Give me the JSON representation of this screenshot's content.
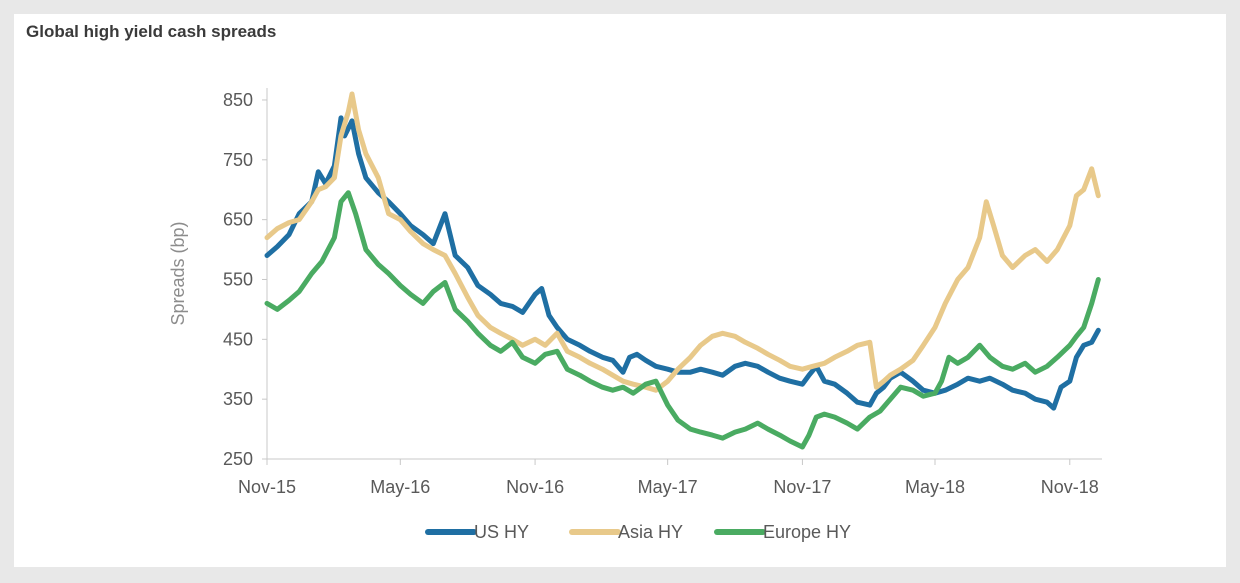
{
  "title": "Global high yield cash spreads",
  "chart_data": {
    "type": "line",
    "ylabel": "Spreads (bp)",
    "ylim": [
      250,
      870
    ],
    "xlim": [
      "2015-11-01",
      "2018-12-15"
    ],
    "yticks": [
      250,
      350,
      450,
      550,
      650,
      750,
      850
    ],
    "xticks": [
      {
        "label": "Nov-15",
        "date": "2015-11-01"
      },
      {
        "label": "May-16",
        "date": "2016-05-01"
      },
      {
        "label": "Nov-16",
        "date": "2016-11-01"
      },
      {
        "label": "May-17",
        "date": "2017-05-01"
      },
      {
        "label": "Nov-17",
        "date": "2017-11-01"
      },
      {
        "label": "May-18",
        "date": "2018-05-01"
      },
      {
        "label": "Nov-18",
        "date": "2018-11-01"
      }
    ],
    "grid": false,
    "legend": "bottom",
    "series": [
      {
        "name": "US HY",
        "color": "#1f6fa3",
        "points": [
          [
            "2015-11-01",
            590
          ],
          [
            "2015-11-15",
            605
          ],
          [
            "2015-12-01",
            625
          ],
          [
            "2015-12-15",
            660
          ],
          [
            "2016-01-01",
            680
          ],
          [
            "2016-01-10",
            730
          ],
          [
            "2016-01-20",
            710
          ],
          [
            "2016-02-01",
            740
          ],
          [
            "2016-02-10",
            820
          ],
          [
            "2016-02-15",
            790
          ],
          [
            "2016-02-25",
            815
          ],
          [
            "2016-03-05",
            760
          ],
          [
            "2016-03-15",
            720
          ],
          [
            "2016-04-01",
            695
          ],
          [
            "2016-04-15",
            680
          ],
          [
            "2016-05-01",
            660
          ],
          [
            "2016-05-15",
            640
          ],
          [
            "2016-06-01",
            625
          ],
          [
            "2016-06-15",
            610
          ],
          [
            "2016-07-01",
            660
          ],
          [
            "2016-07-15",
            590
          ],
          [
            "2016-08-01",
            570
          ],
          [
            "2016-08-15",
            540
          ],
          [
            "2016-09-01",
            525
          ],
          [
            "2016-09-15",
            510
          ],
          [
            "2016-10-01",
            505
          ],
          [
            "2016-10-15",
            495
          ],
          [
            "2016-11-01",
            525
          ],
          [
            "2016-11-10",
            535
          ],
          [
            "2016-11-20",
            490
          ],
          [
            "2016-12-01",
            470
          ],
          [
            "2016-12-15",
            450
          ],
          [
            "2017-01-01",
            440
          ],
          [
            "2017-01-15",
            430
          ],
          [
            "2017-02-01",
            420
          ],
          [
            "2017-02-15",
            415
          ],
          [
            "2017-03-01",
            395
          ],
          [
            "2017-03-10",
            420
          ],
          [
            "2017-03-20",
            425
          ],
          [
            "2017-04-01",
            415
          ],
          [
            "2017-04-15",
            405
          ],
          [
            "2017-05-01",
            400
          ],
          [
            "2017-05-15",
            395
          ],
          [
            "2017-06-01",
            395
          ],
          [
            "2017-06-15",
            400
          ],
          [
            "2017-07-01",
            395
          ],
          [
            "2017-07-15",
            390
          ],
          [
            "2017-08-01",
            405
          ],
          [
            "2017-08-15",
            410
          ],
          [
            "2017-09-01",
            405
          ],
          [
            "2017-09-15",
            395
          ],
          [
            "2017-10-01",
            385
          ],
          [
            "2017-10-15",
            380
          ],
          [
            "2017-11-01",
            375
          ],
          [
            "2017-11-10",
            390
          ],
          [
            "2017-11-20",
            405
          ],
          [
            "2017-12-01",
            380
          ],
          [
            "2017-12-15",
            375
          ],
          [
            "2018-01-01",
            360
          ],
          [
            "2018-01-15",
            345
          ],
          [
            "2018-02-01",
            340
          ],
          [
            "2018-02-10",
            360
          ],
          [
            "2018-02-20",
            370
          ],
          [
            "2018-03-01",
            385
          ],
          [
            "2018-03-15",
            395
          ],
          [
            "2018-04-01",
            380
          ],
          [
            "2018-04-15",
            365
          ],
          [
            "2018-05-01",
            360
          ],
          [
            "2018-05-15",
            365
          ],
          [
            "2018-06-01",
            375
          ],
          [
            "2018-06-15",
            385
          ],
          [
            "2018-07-01",
            380
          ],
          [
            "2018-07-15",
            385
          ],
          [
            "2018-08-01",
            375
          ],
          [
            "2018-08-15",
            365
          ],
          [
            "2018-09-01",
            360
          ],
          [
            "2018-09-15",
            350
          ],
          [
            "2018-10-01",
            345
          ],
          [
            "2018-10-10",
            335
          ],
          [
            "2018-10-20",
            370
          ],
          [
            "2018-11-01",
            380
          ],
          [
            "2018-11-10",
            420
          ],
          [
            "2018-11-20",
            440
          ],
          [
            "2018-12-01",
            445
          ],
          [
            "2018-12-10",
            465
          ]
        ]
      },
      {
        "name": "Asia HY",
        "color": "#e8c98a",
        "points": [
          [
            "2015-11-01",
            620
          ],
          [
            "2015-11-15",
            635
          ],
          [
            "2015-12-01",
            645
          ],
          [
            "2015-12-15",
            650
          ],
          [
            "2016-01-01",
            680
          ],
          [
            "2016-01-10",
            700
          ],
          [
            "2016-01-20",
            705
          ],
          [
            "2016-02-01",
            720
          ],
          [
            "2016-02-10",
            790
          ],
          [
            "2016-02-20",
            830
          ],
          [
            "2016-02-25",
            860
          ],
          [
            "2016-03-05",
            800
          ],
          [
            "2016-03-15",
            760
          ],
          [
            "2016-04-01",
            720
          ],
          [
            "2016-04-15",
            660
          ],
          [
            "2016-05-01",
            650
          ],
          [
            "2016-05-15",
            630
          ],
          [
            "2016-06-01",
            610
          ],
          [
            "2016-06-15",
            600
          ],
          [
            "2016-07-01",
            590
          ],
          [
            "2016-07-15",
            560
          ],
          [
            "2016-08-01",
            520
          ],
          [
            "2016-08-15",
            490
          ],
          [
            "2016-09-01",
            470
          ],
          [
            "2016-09-15",
            460
          ],
          [
            "2016-10-01",
            450
          ],
          [
            "2016-10-15",
            440
          ],
          [
            "2016-11-01",
            450
          ],
          [
            "2016-11-15",
            440
          ],
          [
            "2016-12-01",
            460
          ],
          [
            "2016-12-15",
            430
          ],
          [
            "2017-01-01",
            420
          ],
          [
            "2017-01-15",
            410
          ],
          [
            "2017-02-01",
            400
          ],
          [
            "2017-02-15",
            390
          ],
          [
            "2017-03-01",
            380
          ],
          [
            "2017-03-15",
            375
          ],
          [
            "2017-04-01",
            370
          ],
          [
            "2017-04-15",
            365
          ],
          [
            "2017-05-01",
            380
          ],
          [
            "2017-05-15",
            400
          ],
          [
            "2017-06-01",
            420
          ],
          [
            "2017-06-15",
            440
          ],
          [
            "2017-07-01",
            455
          ],
          [
            "2017-07-15",
            460
          ],
          [
            "2017-08-01",
            455
          ],
          [
            "2017-08-15",
            445
          ],
          [
            "2017-09-01",
            435
          ],
          [
            "2017-09-15",
            425
          ],
          [
            "2017-10-01",
            415
          ],
          [
            "2017-10-15",
            405
          ],
          [
            "2017-11-01",
            400
          ],
          [
            "2017-11-15",
            405
          ],
          [
            "2017-12-01",
            410
          ],
          [
            "2017-12-15",
            420
          ],
          [
            "2018-01-01",
            430
          ],
          [
            "2018-01-15",
            440
          ],
          [
            "2018-02-01",
            445
          ],
          [
            "2018-02-10",
            370
          ],
          [
            "2018-02-20",
            380
          ],
          [
            "2018-03-01",
            390
          ],
          [
            "2018-03-15",
            400
          ],
          [
            "2018-04-01",
            415
          ],
          [
            "2018-04-15",
            440
          ],
          [
            "2018-05-01",
            470
          ],
          [
            "2018-05-15",
            510
          ],
          [
            "2018-06-01",
            550
          ],
          [
            "2018-06-15",
            570
          ],
          [
            "2018-07-01",
            620
          ],
          [
            "2018-07-10",
            680
          ],
          [
            "2018-07-20",
            640
          ],
          [
            "2018-08-01",
            590
          ],
          [
            "2018-08-15",
            570
          ],
          [
            "2018-09-01",
            590
          ],
          [
            "2018-09-15",
            600
          ],
          [
            "2018-10-01",
            580
          ],
          [
            "2018-10-15",
            600
          ],
          [
            "2018-11-01",
            640
          ],
          [
            "2018-11-10",
            690
          ],
          [
            "2018-11-20",
            700
          ],
          [
            "2018-12-01",
            735
          ],
          [
            "2018-12-10",
            690
          ]
        ]
      },
      {
        "name": "Europe HY",
        "color": "#4aab62",
        "points": [
          [
            "2015-11-01",
            510
          ],
          [
            "2015-11-15",
            500
          ],
          [
            "2015-12-01",
            515
          ],
          [
            "2015-12-15",
            530
          ],
          [
            "2016-01-01",
            560
          ],
          [
            "2016-01-15",
            580
          ],
          [
            "2016-02-01",
            620
          ],
          [
            "2016-02-10",
            680
          ],
          [
            "2016-02-20",
            695
          ],
          [
            "2016-03-01",
            660
          ],
          [
            "2016-03-15",
            600
          ],
          [
            "2016-04-01",
            575
          ],
          [
            "2016-04-15",
            560
          ],
          [
            "2016-05-01",
            540
          ],
          [
            "2016-05-15",
            525
          ],
          [
            "2016-06-01",
            510
          ],
          [
            "2016-06-15",
            530
          ],
          [
            "2016-07-01",
            545
          ],
          [
            "2016-07-15",
            500
          ],
          [
            "2016-08-01",
            480
          ],
          [
            "2016-08-15",
            460
          ],
          [
            "2016-09-01",
            440
          ],
          [
            "2016-09-15",
            430
          ],
          [
            "2016-10-01",
            445
          ],
          [
            "2016-10-15",
            420
          ],
          [
            "2016-11-01",
            410
          ],
          [
            "2016-11-15",
            425
          ],
          [
            "2016-12-01",
            430
          ],
          [
            "2016-12-15",
            400
          ],
          [
            "2017-01-01",
            390
          ],
          [
            "2017-01-15",
            380
          ],
          [
            "2017-02-01",
            370
          ],
          [
            "2017-02-15",
            365
          ],
          [
            "2017-03-01",
            370
          ],
          [
            "2017-03-15",
            360
          ],
          [
            "2017-04-01",
            375
          ],
          [
            "2017-04-15",
            380
          ],
          [
            "2017-05-01",
            340
          ],
          [
            "2017-05-15",
            315
          ],
          [
            "2017-06-01",
            300
          ],
          [
            "2017-06-15",
            295
          ],
          [
            "2017-07-01",
            290
          ],
          [
            "2017-07-15",
            285
          ],
          [
            "2017-08-01",
            295
          ],
          [
            "2017-08-15",
            300
          ],
          [
            "2017-09-01",
            310
          ],
          [
            "2017-09-15",
            300
          ],
          [
            "2017-10-01",
            290
          ],
          [
            "2017-10-15",
            280
          ],
          [
            "2017-11-01",
            270
          ],
          [
            "2017-11-10",
            290
          ],
          [
            "2017-11-20",
            320
          ],
          [
            "2017-12-01",
            325
          ],
          [
            "2017-12-15",
            320
          ],
          [
            "2018-01-01",
            310
          ],
          [
            "2018-01-15",
            300
          ],
          [
            "2018-02-01",
            320
          ],
          [
            "2018-02-15",
            330
          ],
          [
            "2018-03-01",
            350
          ],
          [
            "2018-03-15",
            370
          ],
          [
            "2018-04-01",
            365
          ],
          [
            "2018-04-15",
            355
          ],
          [
            "2018-05-01",
            360
          ],
          [
            "2018-05-10",
            380
          ],
          [
            "2018-05-20",
            420
          ],
          [
            "2018-06-01",
            410
          ],
          [
            "2018-06-15",
            420
          ],
          [
            "2018-07-01",
            440
          ],
          [
            "2018-07-15",
            420
          ],
          [
            "2018-08-01",
            405
          ],
          [
            "2018-08-15",
            400
          ],
          [
            "2018-09-01",
            410
          ],
          [
            "2018-09-15",
            395
          ],
          [
            "2018-10-01",
            405
          ],
          [
            "2018-10-15",
            420
          ],
          [
            "2018-11-01",
            440
          ],
          [
            "2018-11-10",
            455
          ],
          [
            "2018-11-20",
            470
          ],
          [
            "2018-12-01",
            510
          ],
          [
            "2018-12-10",
            550
          ]
        ]
      }
    ]
  }
}
